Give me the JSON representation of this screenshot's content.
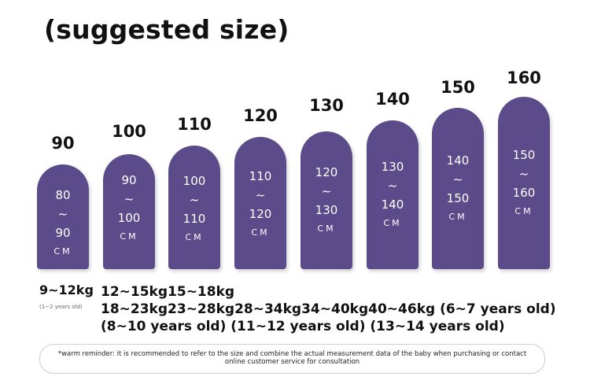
{
  "title": "(suggested size)",
  "sizes": [
    {
      "label": "90",
      "top": "80",
      "bottom": "90",
      "unit": "CM"
    },
    {
      "label": "100",
      "top": "90",
      "bottom": "100",
      "unit": "CM"
    },
    {
      "label": "110",
      "top": "100",
      "bottom": "110",
      "unit": "CM"
    },
    {
      "label": "120",
      "top": "110",
      "bottom": "120",
      "unit": "CM"
    },
    {
      "label": "130",
      "top": "120",
      "bottom": "130",
      "unit": "CM"
    },
    {
      "label": "140",
      "top": "130",
      "bottom": "140",
      "unit": "CM"
    },
    {
      "label": "150",
      "top": "140",
      "bottom": "150",
      "unit": "CM"
    },
    {
      "label": "160",
      "top": "150",
      "bottom": "160",
      "unit": "CM"
    }
  ],
  "tilde": "~",
  "first_weight": "9~12kg",
  "first_age": "(1~2 years old)",
  "weights_text": "12~15kg15~18kg 18~23kg23~28kg28~34kg34~40kg40~46kg (6~7 years old) (8~10 years old) (11~12 years old) (13~14 years old)",
  "reminder": "*warm reminder: it is recommended to refer to the size and combine the actual measurement data of the baby when purchasing or contact online customer service for consultation",
  "colors": {
    "bar": "#5b4b8a",
    "bar_text": "#ffffff"
  }
}
